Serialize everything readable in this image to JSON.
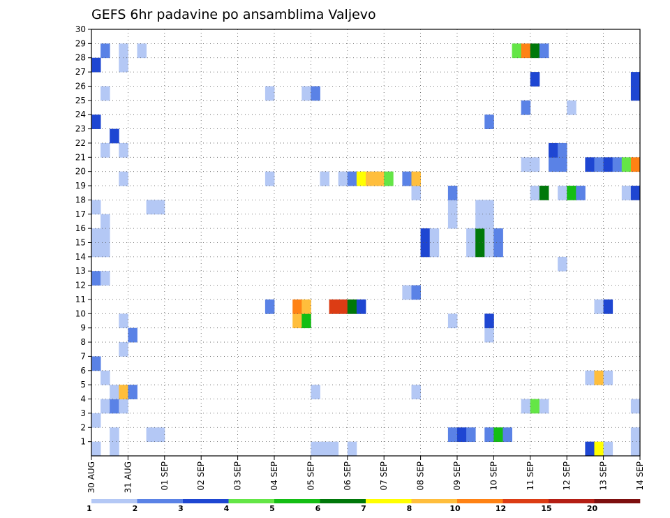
{
  "chart_data": {
    "type": "heatmap",
    "title": "GEFS 6hr padavine po ansamblima Valjevo",
    "xlabel": "",
    "ylabel": "",
    "x_ticks": [
      "30 AUG",
      "31 AUG",
      "01 SEP",
      "02 SEP",
      "03 SEP",
      "04 SEP",
      "05 SEP",
      "06 SEP",
      "07 SEP",
      "08 SEP",
      "09 SEP",
      "10 SEP",
      "11 SEP",
      "12 SEP",
      "13 SEP",
      "14 SEP"
    ],
    "y_ticks": [
      "1",
      "2",
      "3",
      "4",
      "5",
      "6",
      "7",
      "8",
      "9",
      "10",
      "11",
      "12",
      "13",
      "14",
      "15",
      "16",
      "17",
      "18",
      "19",
      "20",
      "21",
      "22",
      "23",
      "24",
      "25",
      "26",
      "27",
      "28",
      "29",
      "30"
    ],
    "xlim": [
      0,
      60
    ],
    "ylim": [
      0,
      30
    ],
    "grid": true,
    "levels": [
      1,
      2,
      3,
      4,
      5,
      6,
      7,
      8,
      10,
      12,
      15,
      20
    ],
    "colorbar": {
      "labels": [
        "1",
        "2",
        "3",
        "4",
        "5",
        "6",
        "7",
        "8",
        "10",
        "12",
        "15",
        "20"
      ],
      "colors": [
        "#b4c8f5",
        "#5a82e6",
        "#1e46d2",
        "#64e646",
        "#14be14",
        "#00780a",
        "#ffff00",
        "#ffbe3c",
        "#ff8214",
        "#dc3c14",
        "#b41e14",
        "#7d0f0f"
      ]
    },
    "cells": [
      [
        0,
        0,
        1.5
      ],
      [
        2,
        0,
        1.5
      ],
      [
        7,
        1,
        1.5
      ],
      [
        24,
        0,
        1.5
      ],
      [
        25,
        0,
        1.5
      ],
      [
        26,
        0,
        1.5
      ],
      [
        28,
        0,
        1.5
      ],
      [
        54,
        0,
        3.5
      ],
      [
        55,
        0,
        7.5
      ],
      [
        56,
        0,
        1.5
      ],
      [
        59,
        0,
        1.5
      ],
      [
        2,
        1,
        1.5
      ],
      [
        6,
        1,
        1.5
      ],
      [
        39,
        1,
        2.5
      ],
      [
        40,
        1,
        3.5
      ],
      [
        41,
        1,
        2.5
      ],
      [
        43,
        1,
        2.5
      ],
      [
        44,
        1,
        5.5
      ],
      [
        45,
        1,
        2.5
      ],
      [
        59,
        1,
        1.5
      ],
      [
        0,
        2,
        1.5
      ],
      [
        1,
        3,
        1.5
      ],
      [
        2,
        3,
        2.5
      ],
      [
        3,
        3,
        1.5
      ],
      [
        47,
        3,
        1.5
      ],
      [
        48,
        3,
        4.5
      ],
      [
        49,
        3,
        1.5
      ],
      [
        59,
        3,
        1.5
      ],
      [
        2,
        4,
        1.5
      ],
      [
        3,
        4,
        9
      ],
      [
        4,
        4,
        2.5
      ],
      [
        24,
        4,
        1.5
      ],
      [
        35,
        4,
        1.5
      ],
      [
        1,
        5,
        1.5
      ],
      [
        54,
        5,
        1.5
      ],
      [
        55,
        5,
        9
      ],
      [
        56,
        5,
        1.5
      ],
      [
        0,
        6,
        2.5
      ],
      [
        3,
        7,
        1.5
      ],
      [
        4,
        8,
        2.5
      ],
      [
        43,
        8,
        1.5
      ],
      [
        3,
        9,
        1.5
      ],
      [
        22,
        9,
        9
      ],
      [
        23,
        9,
        5.5
      ],
      [
        39,
        9,
        1.5
      ],
      [
        43,
        9,
        3.5
      ],
      [
        19,
        10,
        2.5
      ],
      [
        22,
        10,
        11
      ],
      [
        23,
        10,
        9
      ],
      [
        26,
        10,
        13.5
      ],
      [
        27,
        10,
        13.5
      ],
      [
        28,
        10,
        6.5
      ],
      [
        29,
        10,
        3.5
      ],
      [
        55,
        10,
        1.5
      ],
      [
        56,
        10,
        3.5
      ],
      [
        34,
        11,
        1.5
      ],
      [
        35,
        11,
        2.5
      ],
      [
        0,
        12,
        2.5
      ],
      [
        1,
        12,
        1.5
      ],
      [
        51,
        13,
        1.5
      ],
      [
        0,
        14,
        1.5
      ],
      [
        1,
        14,
        1.5
      ],
      [
        36,
        14,
        3.5
      ],
      [
        37,
        14,
        1.5
      ],
      [
        41,
        14,
        1.5
      ],
      [
        42,
        14,
        6.5
      ],
      [
        43,
        14,
        1.5
      ],
      [
        44,
        14,
        2.5
      ],
      [
        0,
        15,
        1.5
      ],
      [
        1,
        15,
        1.5
      ],
      [
        36,
        15,
        3.5
      ],
      [
        37,
        15,
        1.5
      ],
      [
        41,
        15,
        1.5
      ],
      [
        42,
        15,
        6.5
      ],
      [
        43,
        15,
        1.5
      ],
      [
        44,
        15,
        2.5
      ],
      [
        1,
        16,
        1.5
      ],
      [
        39,
        16,
        1.5
      ],
      [
        42,
        16,
        1.5
      ],
      [
        43,
        16,
        1.5
      ],
      [
        0,
        17,
        1.5
      ],
      [
        6,
        17,
        1.5
      ],
      [
        7,
        17,
        1.5
      ],
      [
        39,
        17,
        1.5
      ],
      [
        42,
        17,
        1.5
      ],
      [
        43,
        17,
        1.5
      ],
      [
        35,
        18,
        1.5
      ],
      [
        39,
        18,
        2.5
      ],
      [
        48,
        18,
        1.5
      ],
      [
        49,
        18,
        6.5
      ],
      [
        51,
        18,
        1.5
      ],
      [
        52,
        18,
        5.5
      ],
      [
        53,
        18,
        2.5
      ],
      [
        58,
        18,
        1.5
      ],
      [
        59,
        18,
        3.5
      ],
      [
        3,
        19,
        1.5
      ],
      [
        19,
        19,
        1.5
      ],
      [
        25,
        19,
        1.5
      ],
      [
        27,
        19,
        1.5
      ],
      [
        28,
        19,
        2.5
      ],
      [
        29,
        19,
        7.5
      ],
      [
        30,
        19,
        9
      ],
      [
        31,
        19,
        9
      ],
      [
        32,
        19,
        4.5
      ],
      [
        34,
        19,
        2.5
      ],
      [
        35,
        19,
        9
      ],
      [
        47,
        20,
        1.5
      ],
      [
        48,
        20,
        1.5
      ],
      [
        50,
        20,
        2.5
      ],
      [
        51,
        20,
        2.5
      ],
      [
        54,
        20,
        3.5
      ],
      [
        55,
        20,
        2.5
      ],
      [
        56,
        20,
        3.5
      ],
      [
        57,
        20,
        2.5
      ],
      [
        58,
        20,
        4.5
      ],
      [
        59,
        20,
        11
      ],
      [
        1,
        21,
        1.5
      ],
      [
        3,
        21,
        1.5
      ],
      [
        50,
        21,
        3.5
      ],
      [
        51,
        21,
        2.5
      ],
      [
        2,
        22,
        3.5
      ],
      [
        0,
        23,
        3.5
      ],
      [
        43,
        23,
        2.5
      ],
      [
        47,
        24,
        2.5
      ],
      [
        52,
        24,
        1.5
      ],
      [
        1,
        25,
        1.5
      ],
      [
        19,
        25,
        1.5
      ],
      [
        23,
        25,
        1.5
      ],
      [
        24,
        25,
        2.5
      ],
      [
        59,
        25,
        3.5
      ],
      [
        48,
        26,
        3.5
      ],
      [
        59,
        26,
        3.5
      ],
      [
        0,
        27,
        3.5
      ],
      [
        3,
        27,
        1.5
      ],
      [
        1,
        28,
        2.5
      ],
      [
        3,
        28,
        1.5
      ],
      [
        5,
        28,
        1.5
      ],
      [
        46,
        28,
        4.5
      ],
      [
        47,
        28,
        11
      ],
      [
        48,
        28,
        6.5
      ],
      [
        49,
        28,
        2.5
      ]
    ]
  }
}
